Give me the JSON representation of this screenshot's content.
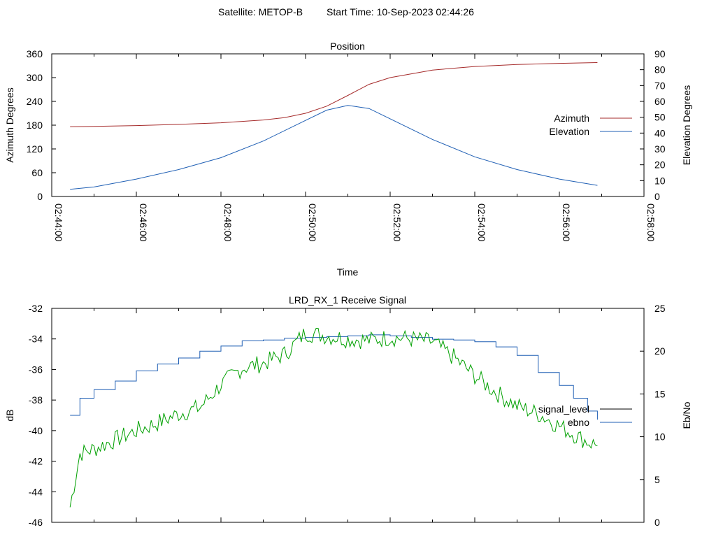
{
  "header": {
    "satellite": "Satellite: METOP-B",
    "start_time": "Start Time: 10-Sep-2023 02:44:26"
  },
  "colors": {
    "azimuth": "#a52a2a",
    "elevation": "#1f5fb4",
    "signal_level": "#000000",
    "ebno": "#1f5fb4",
    "signal_trace": "#00a000",
    "axis": "#000000"
  },
  "chart_data": [
    {
      "type": "line",
      "title": "Position",
      "xlabel": "Time",
      "ylabel": "Azimuth Degrees",
      "y2label": "Elevation Degrees",
      "xlim": [
        "02:44:00",
        "02:58:00"
      ],
      "x_ticks": [
        "02:44:00",
        "02:46:00",
        "02:48:00",
        "02:50:00",
        "02:52:00",
        "02:54:00",
        "02:56:00",
        "02:58:00"
      ],
      "ylim": [
        0,
        360
      ],
      "y_ticks": [
        "0",
        "60",
        "120",
        "180",
        "240",
        "300",
        "360"
      ],
      "y2lim": [
        0,
        90
      ],
      "y2_ticks": [
        "0",
        "10",
        "20",
        "30",
        "40",
        "50",
        "60",
        "70",
        "80",
        "90"
      ],
      "legend": "right",
      "series": [
        {
          "name": "Azimuth",
          "axis": "y",
          "x": [
            "02:44:26",
            "02:45:00",
            "02:46:00",
            "02:47:00",
            "02:48:00",
            "02:49:00",
            "02:49:30",
            "02:50:00",
            "02:50:30",
            "02:51:00",
            "02:51:30",
            "02:52:00",
            "02:53:00",
            "02:54:00",
            "02:55:00",
            "02:56:00",
            "02:56:54"
          ],
          "y": [
            176,
            177,
            179,
            182,
            186,
            193,
            199,
            210,
            228,
            255,
            283,
            300,
            319,
            328,
            333,
            336,
            338
          ]
        },
        {
          "name": "Elevation",
          "axis": "y2",
          "x": [
            "02:44:26",
            "02:45:00",
            "02:46:00",
            "02:47:00",
            "02:48:00",
            "02:49:00",
            "02:50:00",
            "02:50:30",
            "02:51:00",
            "02:51:30",
            "02:52:00",
            "02:53:00",
            "02:54:00",
            "02:55:00",
            "02:56:00",
            "02:56:54"
          ],
          "y": [
            4.5,
            6,
            11,
            17,
            24.5,
            35,
            48,
            54.5,
            57.5,
            55.5,
            49,
            36,
            25,
            17,
            11,
            7
          ]
        }
      ]
    },
    {
      "type": "line",
      "title": "LRD_RX_1 Receive Signal",
      "ylabel": "dB",
      "y2label": "Eb/No",
      "xlim": [
        "02:44:00",
        "02:58:00"
      ],
      "ylim": [
        -46,
        -32
      ],
      "y_ticks": [
        "-32",
        "-34",
        "-36",
        "-38",
        "-40",
        "-42",
        "-44",
        "-46"
      ],
      "y2lim": [
        0,
        25
      ],
      "y2_ticks": [
        "0",
        "5",
        "10",
        "15",
        "20",
        "25"
      ],
      "legend": "right",
      "series": [
        {
          "name": "signal_level",
          "axis": "y",
          "x": [
            "02:44:26",
            "02:44:40",
            "02:45:00",
            "02:45:30",
            "02:46:00",
            "02:46:30",
            "02:47:00",
            "02:47:30",
            "02:48:00",
            "02:48:30",
            "02:49:00",
            "02:49:30",
            "02:50:00",
            "02:50:30",
            "02:51:00",
            "02:51:30",
            "02:52:00",
            "02:52:30",
            "02:53:00",
            "02:53:30",
            "02:54:00",
            "02:54:30",
            "02:55:00",
            "02:55:30",
            "02:56:00",
            "02:56:30",
            "02:56:54"
          ],
          "y": [
            -45,
            -41.5,
            -41.2,
            -40.6,
            -40,
            -39.5,
            -38.9,
            -38.5,
            -37,
            -35.9,
            -35.6,
            -35,
            -33.6,
            -33.8,
            -34,
            -34.1,
            -33.9,
            -34,
            -34.2,
            -35.2,
            -36.4,
            -37.5,
            -38.4,
            -38.9,
            -39.7,
            -40.5,
            -41
          ]
        },
        {
          "name": "ebno",
          "axis": "y2",
          "x": [
            "02:44:26",
            "02:44:40",
            "02:45:00",
            "02:45:30",
            "02:46:00",
            "02:46:30",
            "02:47:00",
            "02:47:30",
            "02:48:00",
            "02:48:30",
            "02:49:00",
            "02:49:30",
            "02:50:00",
            "02:50:30",
            "02:51:00",
            "02:51:30",
            "02:52:00",
            "02:52:30",
            "02:53:00",
            "02:53:30",
            "02:54:00",
            "02:54:30",
            "02:55:00",
            "02:55:30",
            "02:56:00",
            "02:56:20",
            "02:56:40",
            "02:56:54"
          ],
          "y": [
            12.5,
            14.5,
            15.5,
            16.5,
            17.7,
            18.5,
            19.2,
            20,
            20.6,
            21.2,
            21.3,
            21.5,
            21.6,
            21.7,
            21.8,
            21.9,
            21.8,
            21.6,
            21.4,
            21.3,
            21.1,
            20.5,
            19.5,
            17.5,
            16,
            14.5,
            13,
            12
          ]
        }
      ]
    }
  ]
}
